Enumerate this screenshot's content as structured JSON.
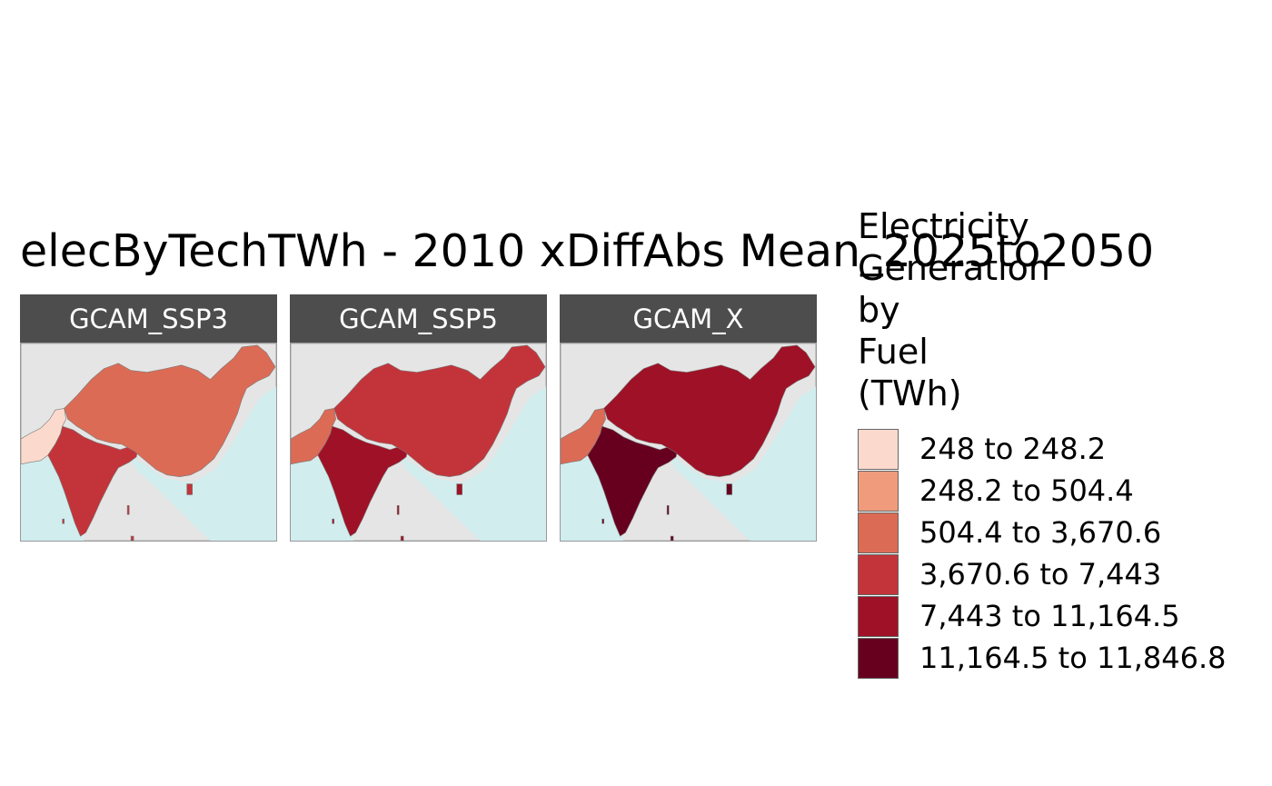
{
  "title": "elecByTechTWh - 2010 xDiffAbs Mean_2025to2050",
  "legend": {
    "title_lines": [
      "Electricity",
      "Generation",
      "by",
      "Fuel",
      "(TWh)"
    ],
    "items": [
      {
        "label": "248 to 248.2",
        "color": "#fbd9cd"
      },
      {
        "label": "248.2 to 504.4",
        "color": "#ef9b7c"
      },
      {
        "label": "504.4 to 3,670.6",
        "color": "#dc6b55"
      },
      {
        "label": "3,670.6 to 7,443",
        "color": "#c3343a"
      },
      {
        "label": "7,443 to 11,164.5",
        "color": "#9f1126"
      },
      {
        "label": "11,164.5 to 11,846.8",
        "color": "#67001f"
      }
    ]
  },
  "colors": {
    "ocean": "#d1edee",
    "land": "#e5e5e5",
    "border": "#777777",
    "strip": "#4d4d4d"
  },
  "panels": [
    {
      "label": "GCAM_SSP3",
      "china": 2,
      "india": 3,
      "pakistan": 0
    },
    {
      "label": "GCAM_SSP5",
      "china": 3,
      "india": 4,
      "pakistan": 2
    },
    {
      "label": "GCAM_X",
      "china": 4,
      "india": 5,
      "pakistan": 2
    }
  ]
}
